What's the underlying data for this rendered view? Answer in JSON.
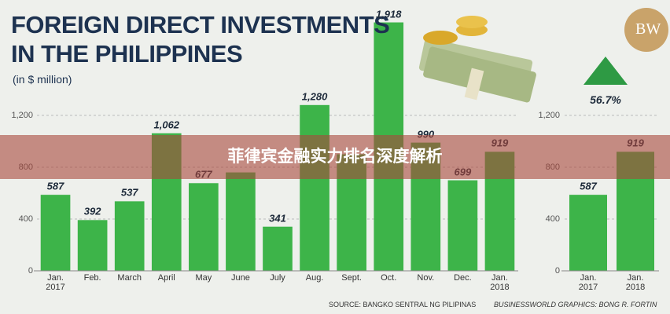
{
  "chart_data": [
    {
      "type": "bar",
      "title": "FOREIGN DIRECT INVESTMENTS\nIN THE PHILIPPINES",
      "subtitle": "(in $ million)",
      "categories": [
        "Jan.\n2017",
        "Feb.",
        "March",
        "April",
        "May",
        "June",
        "July",
        "Aug.",
        "Sept.",
        "Oct.",
        "Nov.",
        "Dec.",
        "Jan.\n2018"
      ],
      "values": [
        587,
        392,
        537,
        1062,
        677,
        760,
        341,
        1280,
        900,
        1918,
        990,
        699,
        919
      ],
      "value_labels": [
        "587",
        "392",
        "537",
        "1,062",
        "677",
        null,
        "341",
        "1,280",
        null,
        "1,918",
        "990",
        "699",
        "919"
      ],
      "color": "#3db449",
      "ylim": [
        0,
        2000
      ],
      "yticks": [
        0,
        400,
        800,
        {
          "value": 1200,
          "label": "1,200"
        }
      ],
      "grid": true
    },
    {
      "type": "bar",
      "categories": [
        "Jan.\n2017",
        "Jan.\n2018"
      ],
      "values": [
        587,
        919
      ],
      "color": "#3db449",
      "ylim": [
        0,
        2000
      ],
      "yticks": [
        0,
        400,
        800,
        {
          "value": 1200,
          "label": "1,200"
        }
      ],
      "grid": true,
      "annotation": "56.7%"
    }
  ],
  "banner": "菲律宾金融实力排名深度解析",
  "logo": "BW",
  "source": "SOURCE: BANGKO SENTRAL NG PILIPINAS",
  "credit": "BUSINESSWORLD GRAPHICS: BONG R. FORTIN"
}
